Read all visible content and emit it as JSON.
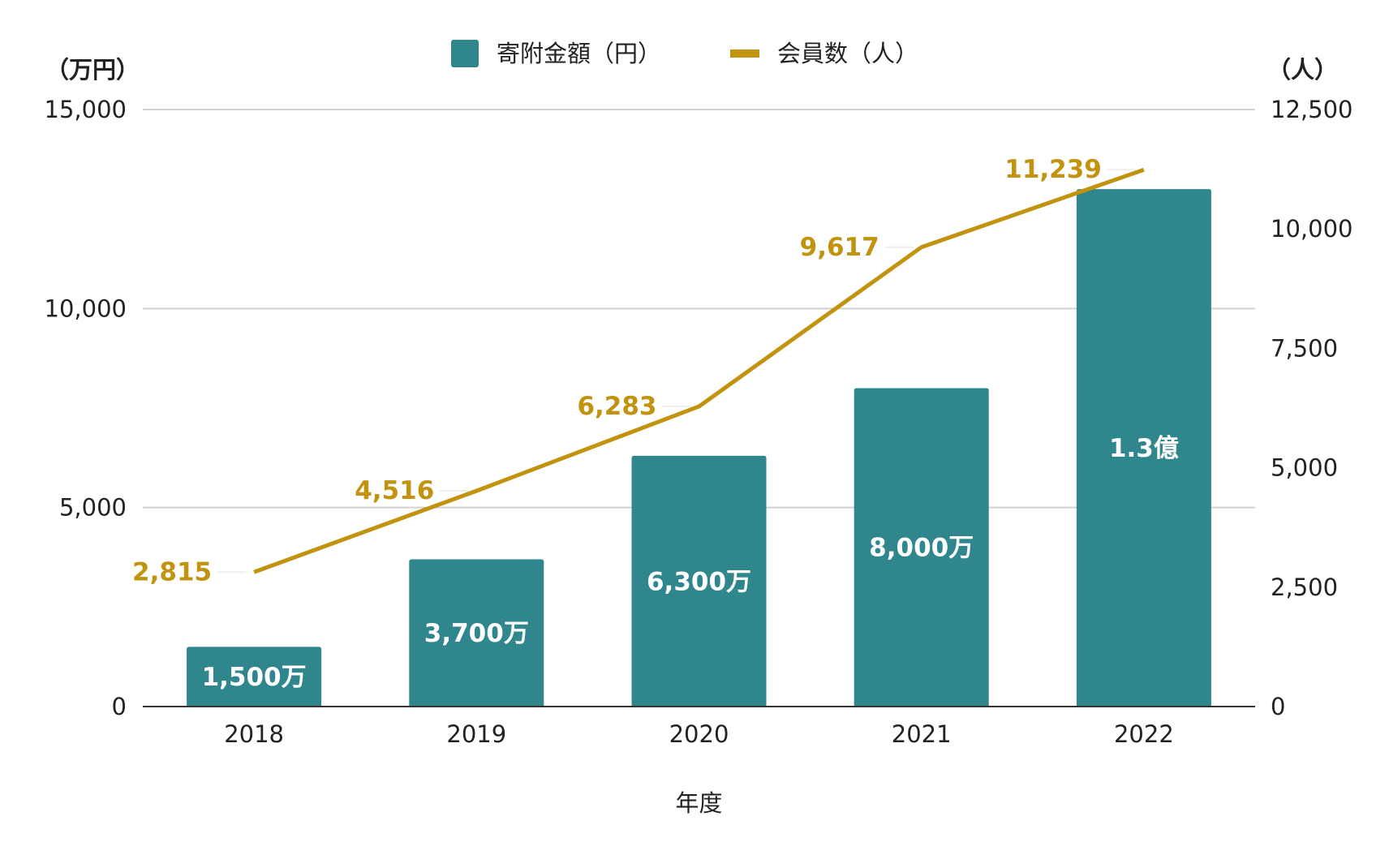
{
  "chart_data": {
    "type": "bar+line",
    "categories": [
      "2018",
      "2019",
      "2020",
      "2021",
      "2022"
    ],
    "xlabel": "年度",
    "left_axis": {
      "unit_label": "（万円）",
      "range": [
        0,
        15000
      ],
      "ticks": [
        "0",
        "5,000",
        "10,000",
        "15,000"
      ],
      "tick_values": [
        0,
        5000,
        10000,
        15000
      ]
    },
    "right_axis": {
      "unit_label": "（人）",
      "range": [
        0,
        12500
      ],
      "ticks": [
        "0",
        "2,500",
        "5,000",
        "7,500",
        "10,000",
        "12,500"
      ],
      "tick_values": [
        0,
        2500,
        5000,
        7500,
        10000,
        12500
      ]
    },
    "grid": true,
    "legend_position": "top",
    "series": [
      {
        "name": "寄附金額（円）",
        "type": "bar",
        "axis": "left",
        "color": "#2f868d",
        "values": [
          1500,
          3700,
          6300,
          8000,
          13000
        ],
        "labels": [
          "1,500万",
          "3,700万",
          "6,300万",
          "8,000万",
          "1.3億"
        ]
      },
      {
        "name": "会員数（人）",
        "type": "line",
        "axis": "right",
        "color": "#c1930f",
        "values": [
          2815,
          4516,
          6283,
          9617,
          11239
        ],
        "labels": [
          "2,815",
          "4,516",
          "6,283",
          "9,617",
          "11,239"
        ]
      }
    ]
  }
}
